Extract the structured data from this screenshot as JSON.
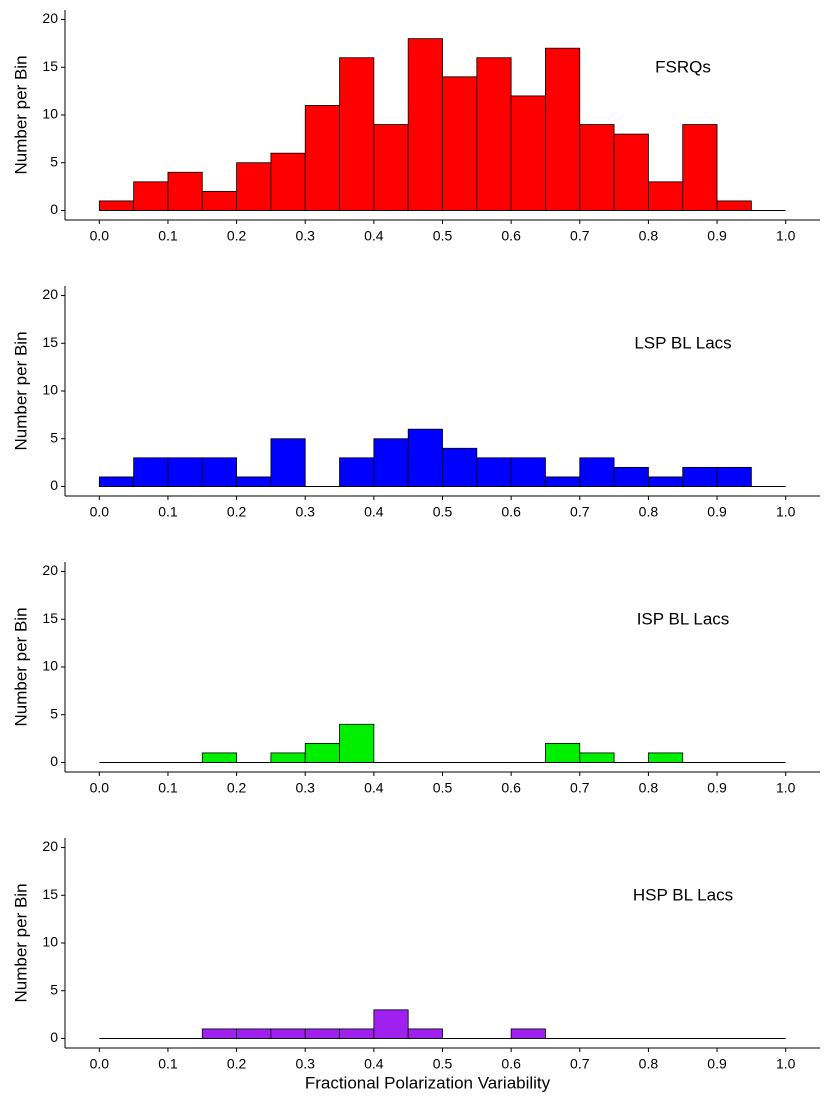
{
  "chart_data": [
    {
      "type": "histogram",
      "annotation": "FSRQs",
      "ylabel": "Number per Bin",
      "color": "#ff0000",
      "bins": [
        0,
        0.05,
        0.1,
        0.15,
        0.2,
        0.25,
        0.3,
        0.35,
        0.4,
        0.45,
        0.5,
        0.55,
        0.6,
        0.65,
        0.7,
        0.75,
        0.8,
        0.85,
        0.9,
        0.95,
        1
      ],
      "values": [
        1,
        3,
        4,
        2,
        5,
        6,
        11,
        16,
        9,
        18,
        14,
        16,
        12,
        17,
        9,
        8,
        3,
        9,
        1,
        0
      ],
      "xlim": [
        -0.05,
        1.05
      ],
      "ylim": [
        -1,
        21
      ],
      "xticks": [
        {
          "value": 0,
          "label": "0.0"
        },
        0.1,
        0.2,
        0.3,
        0.4,
        0.5,
        0.6,
        0.7,
        0.8,
        0.9,
        {
          "value": 1,
          "label": "1.0"
        }
      ],
      "yticks": [
        0,
        5,
        10,
        15,
        20
      ]
    },
    {
      "type": "histogram",
      "annotation": "LSP BL Lacs",
      "ylabel": "Number per Bin",
      "color": "#0000ff",
      "bins": [
        0,
        0.05,
        0.1,
        0.15,
        0.2,
        0.25,
        0.3,
        0.35,
        0.4,
        0.45,
        0.5,
        0.55,
        0.6,
        0.65,
        0.7,
        0.75,
        0.8,
        0.85,
        0.9,
        0.95,
        1
      ],
      "values": [
        1,
        3,
        3,
        3,
        1,
        5,
        0,
        3,
        5,
        6,
        4,
        3,
        3,
        1,
        3,
        2,
        1,
        2,
        2,
        0
      ],
      "xlim": [
        -0.05,
        1.05
      ],
      "ylim": [
        -1,
        21
      ],
      "xticks": [
        {
          "value": 0,
          "label": "0.0"
        },
        0.1,
        0.2,
        0.3,
        0.4,
        0.5,
        0.6,
        0.7,
        0.8,
        0.9,
        {
          "value": 1,
          "label": "1.0"
        }
      ],
      "yticks": [
        0,
        5,
        10,
        15,
        20
      ]
    },
    {
      "type": "histogram",
      "annotation": "ISP BL Lacs",
      "ylabel": "Number per Bin",
      "color": "#00ee00",
      "bins": [
        0,
        0.05,
        0.1,
        0.15,
        0.2,
        0.25,
        0.3,
        0.35,
        0.4,
        0.45,
        0.5,
        0.55,
        0.6,
        0.65,
        0.7,
        0.75,
        0.8,
        0.85,
        0.9,
        0.95,
        1
      ],
      "values": [
        0,
        0,
        0,
        1,
        0,
        1,
        2,
        4,
        0,
        0,
        0,
        0,
        0,
        2,
        1,
        0,
        1,
        0,
        0,
        0
      ],
      "xlim": [
        -0.05,
        1.05
      ],
      "ylim": [
        -1,
        21
      ],
      "xticks": [
        {
          "value": 0,
          "label": "0.0"
        },
        0.1,
        0.2,
        0.3,
        0.4,
        0.5,
        0.6,
        0.7,
        0.8,
        0.9,
        {
          "value": 1,
          "label": "1.0"
        }
      ],
      "yticks": [
        0,
        5,
        10,
        15,
        20
      ]
    },
    {
      "type": "histogram",
      "annotation": "HSP BL Lacs",
      "ylabel": "Number per Bin",
      "xlabel": "Fractional Polarization Variability",
      "color": "#a020f0",
      "bins": [
        0,
        0.05,
        0.1,
        0.15,
        0.2,
        0.25,
        0.3,
        0.35,
        0.4,
        0.45,
        0.5,
        0.55,
        0.6,
        0.65,
        0.7,
        0.75,
        0.8,
        0.85,
        0.9,
        0.95,
        1
      ],
      "values": [
        0,
        0,
        0,
        1,
        1,
        1,
        1,
        1,
        3,
        1,
        0,
        0,
        1,
        0,
        0,
        0,
        0,
        0,
        0,
        0
      ],
      "xlim": [
        -0.05,
        1.05
      ],
      "ylim": [
        -1,
        21
      ],
      "xticks": [
        {
          "value": 0,
          "label": "0.0"
        },
        0.1,
        0.2,
        0.3,
        0.4,
        0.5,
        0.6,
        0.7,
        0.8,
        0.9,
        {
          "value": 1,
          "label": "1.0"
        }
      ],
      "yticks": [
        0,
        5,
        10,
        15,
        20
      ]
    }
  ]
}
